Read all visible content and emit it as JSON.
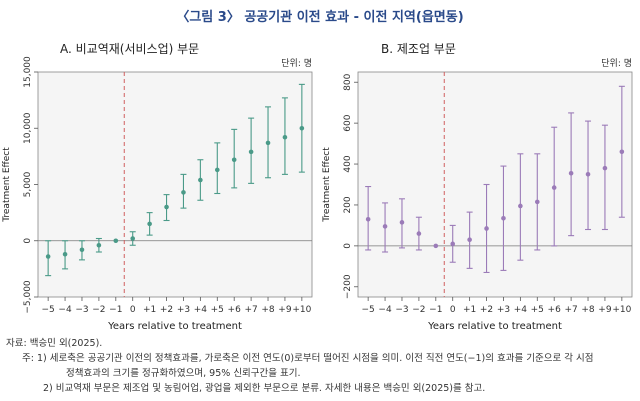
{
  "figure_title": "〈그림 3〉 공공기관 이전 효과 - 이전 지역(읍면동)",
  "chart_data": [
    {
      "type": "scatter",
      "panel_title": "A.  비교역재(서비스업) 부문",
      "unit": "단위: 명",
      "xlabel": "Years relative to treatment",
      "ylabel": "Treatment Effect",
      "x_ticks": [
        "−5",
        "−4",
        "−3",
        "−2",
        "−1",
        "0",
        "+1",
        "+2",
        "+3",
        "+4",
        "+5",
        "+6",
        "+7",
        "+8",
        "+9",
        "+10"
      ],
      "x": [
        -5,
        -4,
        -3,
        -2,
        -1,
        0,
        1,
        2,
        3,
        4,
        5,
        6,
        7,
        8,
        9,
        10
      ],
      "y_ticks": [
        "−5,000",
        "0",
        "5,000",
        "10,000",
        "15,000"
      ],
      "ylim": [
        -5000,
        15000
      ],
      "event_line_x": -0.5,
      "color": "#4a9a88",
      "points": [
        {
          "x": -5,
          "y": -1400,
          "lo": -3100,
          "hi": 0
        },
        {
          "x": -4,
          "y": -1200,
          "lo": -2500,
          "hi": 0
        },
        {
          "x": -3,
          "y": -800,
          "lo": -1700,
          "hi": 0
        },
        {
          "x": -2,
          "y": -400,
          "lo": -1000,
          "hi": 200
        },
        {
          "x": -1,
          "y": 0,
          "lo": 0,
          "hi": 0
        },
        {
          "x": 0,
          "y": 200,
          "lo": -400,
          "hi": 800
        },
        {
          "x": 1,
          "y": 1500,
          "lo": 500,
          "hi": 2500
        },
        {
          "x": 2,
          "y": 3000,
          "lo": 1800,
          "hi": 4100
        },
        {
          "x": 3,
          "y": 4300,
          "lo": 2900,
          "hi": 5900
        },
        {
          "x": 4,
          "y": 5400,
          "lo": 3600,
          "hi": 7200
        },
        {
          "x": 5,
          "y": 6300,
          "lo": 4200,
          "hi": 8700
        },
        {
          "x": 6,
          "y": 7200,
          "lo": 4700,
          "hi": 9900
        },
        {
          "x": 7,
          "y": 7900,
          "lo": 5100,
          "hi": 10900
        },
        {
          "x": 8,
          "y": 8700,
          "lo": 5600,
          "hi": 11900
        },
        {
          "x": 9,
          "y": 9200,
          "lo": 5900,
          "hi": 12700
        },
        {
          "x": 10,
          "y": 10000,
          "lo": 6100,
          "hi": 13900
        }
      ]
    },
    {
      "type": "scatter",
      "panel_title": "B.  제조업  부문",
      "unit": "단위: 명",
      "xlabel": "Years relative to treatment",
      "ylabel": "Treatment Effect",
      "x_ticks": [
        "−5",
        "−4",
        "−3",
        "−2",
        "−1",
        "0",
        "+1",
        "+2",
        "+3",
        "+4",
        "+5",
        "+6",
        "+7",
        "+8",
        "+9",
        "+10"
      ],
      "x": [
        -5,
        -4,
        -3,
        -2,
        -1,
        0,
        1,
        2,
        3,
        4,
        5,
        6,
        7,
        8,
        9,
        10
      ],
      "y_ticks": [
        "−200",
        "0",
        "200",
        "400",
        "600",
        "800"
      ],
      "ylim": [
        -250,
        850
      ],
      "event_line_x": -0.5,
      "color": "#9b7bb8",
      "points": [
        {
          "x": -5,
          "y": 130,
          "lo": -20,
          "hi": 290
        },
        {
          "x": -4,
          "y": 95,
          "lo": -30,
          "hi": 210
        },
        {
          "x": -3,
          "y": 115,
          "lo": -10,
          "hi": 230
        },
        {
          "x": -2,
          "y": 60,
          "lo": -20,
          "hi": 140
        },
        {
          "x": -1,
          "y": 0,
          "lo": 0,
          "hi": 0
        },
        {
          "x": 0,
          "y": 10,
          "lo": -80,
          "hi": 100
        },
        {
          "x": 1,
          "y": 30,
          "lo": -110,
          "hi": 165
        },
        {
          "x": 2,
          "y": 85,
          "lo": -130,
          "hi": 300
        },
        {
          "x": 3,
          "y": 135,
          "lo": -120,
          "hi": 390
        },
        {
          "x": 4,
          "y": 195,
          "lo": -70,
          "hi": 450
        },
        {
          "x": 5,
          "y": 215,
          "lo": -20,
          "hi": 450
        },
        {
          "x": 6,
          "y": 285,
          "lo": 0,
          "hi": 580
        },
        {
          "x": 7,
          "y": 355,
          "lo": 50,
          "hi": 650
        },
        {
          "x": 8,
          "y": 350,
          "lo": 80,
          "hi": 610
        },
        {
          "x": 9,
          "y": 380,
          "lo": 80,
          "hi": 590
        },
        {
          "x": 10,
          "y": 460,
          "lo": 140,
          "hi": 780
        }
      ]
    }
  ],
  "notes": {
    "source": "자료: 백승민 외(2025).",
    "note1_a": "주: 1) 세로축은 공공기관 이전의 정책효과를, 가로축은 이전 연도(0)로부터 떨어진 시점을 의미. 이전 직전 연도(−1)의 효과를 기준으로 각 시점",
    "note1_b": "정책효과의 크기를 정규화하였으며, 95% 신뢰구간을 표기.",
    "note2": "2) 비교역재 부문은 제조업 및 농림어업, 광업을 제외한 부문으로 분류. 자세한 내용은 백승민 외(2025)를 참고."
  }
}
